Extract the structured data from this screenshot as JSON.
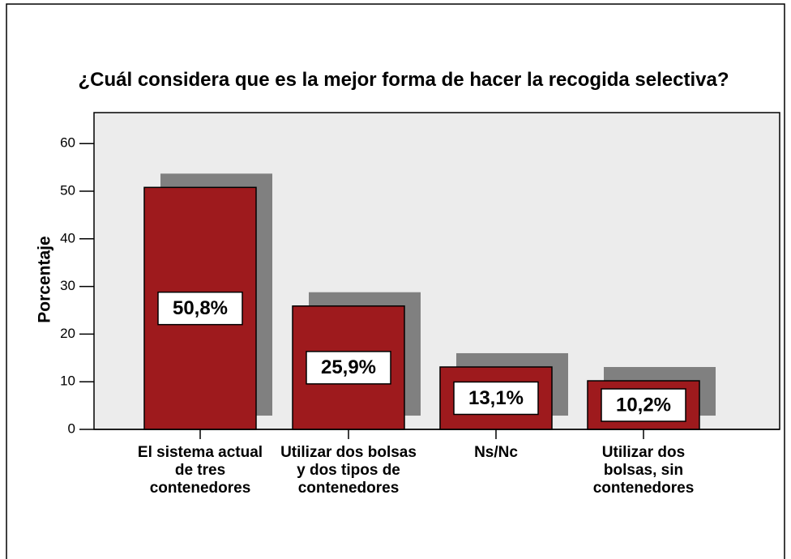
{
  "chart_data": {
    "type": "bar",
    "title": "¿Cuál considera que es la mejor forma de hacer la recogida selectiva?",
    "y_label": "Porcentaje",
    "categories": [
      "El sistema actual de tres contenedores",
      "Utilizar dos bolsas y dos tipos de contenedores",
      "Ns/Nc",
      "Utilizar dos bolsas, sin contenedores"
    ],
    "values": [
      50.8,
      25.9,
      13.1,
      10.2
    ],
    "value_labels": [
      "50,8%",
      "25,9%",
      "13,1%",
      "10,2%"
    ],
    "color": "#9e1a1d",
    "ylim": [
      0,
      66.5
    ],
    "yticks": [
      0,
      10,
      20,
      30,
      40,
      50,
      60
    ]
  }
}
